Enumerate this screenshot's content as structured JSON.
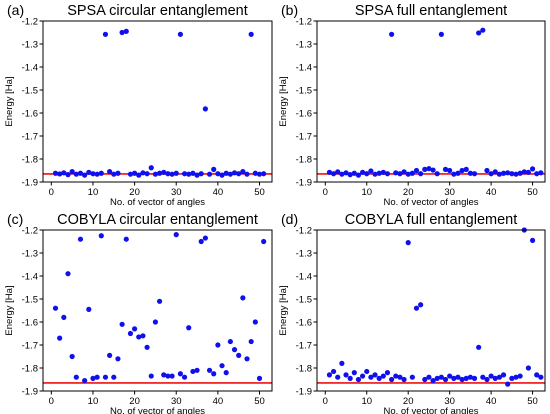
{
  "style": {
    "point_color": "#1010ee",
    "reference_line_color": "#ee1111",
    "axis_color": "#000000"
  },
  "chart_data": [
    {
      "type": "scatter",
      "panel_label": "(a)",
      "title": "SPSA circular entanglement",
      "xlabel": "No. of vector of angles",
      "ylabel": "Energy [Ha]",
      "xlim": [
        -2,
        53
      ],
      "ylim": [
        -1.9,
        -1.2
      ],
      "xticks": [
        0,
        10,
        20,
        30,
        40,
        50
      ],
      "yticks": [
        -1.2,
        -1.3,
        -1.4,
        -1.5,
        -1.6,
        -1.7,
        -1.8,
        -1.9
      ],
      "ytick_labels": [
        "-1.2",
        "-1.3",
        "-1.4",
        "-1.5",
        "-1.6",
        "-1.7",
        "-1.8",
        "-1.9"
      ],
      "reference_line": -1.865,
      "grid": false,
      "x": [
        1,
        2,
        3,
        4,
        5,
        6,
        7,
        8,
        9,
        10,
        11,
        12,
        13,
        14,
        15,
        16,
        17,
        18,
        19,
        20,
        21,
        22,
        23,
        24,
        25,
        26,
        27,
        28,
        29,
        30,
        31,
        32,
        33,
        34,
        35,
        36,
        37,
        38,
        39,
        40,
        41,
        42,
        43,
        44,
        45,
        46,
        47,
        48,
        49,
        50,
        51
      ],
      "y": [
        -1.862,
        -1.865,
        -1.86,
        -1.868,
        -1.855,
        -1.866,
        -1.862,
        -1.87,
        -1.858,
        -1.864,
        -1.866,
        -1.862,
        -1.258,
        -1.855,
        -1.866,
        -1.862,
        -1.25,
        -1.245,
        -1.866,
        -1.862,
        -1.87,
        -1.86,
        -1.864,
        -1.838,
        -1.866,
        -1.862,
        -1.858,
        -1.864,
        -1.866,
        -1.862,
        -1.258,
        -1.864,
        -1.866,
        -1.862,
        -1.87,
        -1.864,
        -1.582,
        -1.866,
        -1.845,
        -1.864,
        -1.87,
        -1.862,
        -1.866,
        -1.86,
        -1.864,
        -1.855,
        -1.866,
        -1.258,
        -1.862,
        -1.866,
        -1.864
      ]
    },
    {
      "type": "scatter",
      "panel_label": "(b)",
      "title": "SPSA full entanglement",
      "xlabel": "No. of vector of angles",
      "ylabel": "Energy [Ha]",
      "xlim": [
        -2,
        53
      ],
      "ylim": [
        -1.9,
        -1.2
      ],
      "xticks": [
        0,
        10,
        20,
        30,
        40,
        50
      ],
      "yticks": [
        -1.2,
        -1.3,
        -1.4,
        -1.5,
        -1.6,
        -1.7,
        -1.8,
        -1.9
      ],
      "ytick_labels": [
        "-1.2",
        "-1.3",
        "-1.4",
        "-1.5",
        "-1.6",
        "-1.7",
        "-1.8",
        "-1.9"
      ],
      "reference_line": -1.865,
      "grid": false,
      "x": [
        1,
        2,
        3,
        4,
        5,
        6,
        7,
        8,
        9,
        10,
        11,
        12,
        13,
        14,
        15,
        16,
        17,
        18,
        19,
        20,
        21,
        22,
        23,
        24,
        25,
        26,
        27,
        28,
        29,
        30,
        31,
        32,
        33,
        34,
        35,
        36,
        37,
        38,
        39,
        40,
        41,
        42,
        43,
        44,
        45,
        46,
        47,
        48,
        49,
        50,
        51,
        52
      ],
      "y": [
        -1.858,
        -1.864,
        -1.856,
        -1.866,
        -1.86,
        -1.868,
        -1.862,
        -1.87,
        -1.858,
        -1.864,
        -1.852,
        -1.866,
        -1.862,
        -1.858,
        -1.864,
        -1.258,
        -1.86,
        -1.864,
        -1.856,
        -1.866,
        -1.862,
        -1.85,
        -1.864,
        -1.845,
        -1.842,
        -1.848,
        -1.864,
        -1.258,
        -1.845,
        -1.85,
        -1.866,
        -1.862,
        -1.85,
        -1.845,
        -1.862,
        -1.864,
        -1.252,
        -1.24,
        -1.85,
        -1.864,
        -1.856,
        -1.866,
        -1.862,
        -1.86,
        -1.864,
        -1.866,
        -1.862,
        -1.856,
        -1.858,
        -1.843,
        -1.864,
        -1.86
      ]
    },
    {
      "type": "scatter",
      "panel_label": "(c)",
      "title": "COBYLA circular entanglement",
      "xlabel": "No. of vector of angles",
      "ylabel": "Energy [Ha]",
      "xlim": [
        -2,
        53
      ],
      "ylim": [
        -1.9,
        -1.2
      ],
      "xticks": [
        0,
        10,
        20,
        30,
        40,
        50
      ],
      "yticks": [
        -1.2,
        -1.3,
        -1.4,
        -1.5,
        -1.6,
        -1.7,
        -1.8,
        -1.9
      ],
      "ytick_labels": [
        "-1.2",
        "-1.3",
        "-1.4",
        "-1.5",
        "-1.6",
        "-1.7",
        "-1.8",
        "-1.9"
      ],
      "reference_line": -1.865,
      "grid": false,
      "x": [
        1,
        2,
        3,
        4,
        5,
        6,
        7,
        8,
        9,
        10,
        11,
        12,
        13,
        14,
        15,
        16,
        17,
        18,
        19,
        20,
        21,
        22,
        23,
        24,
        25,
        26,
        27,
        28,
        29,
        30,
        31,
        32,
        33,
        34,
        35,
        36,
        37,
        38,
        39,
        40,
        41,
        42,
        43,
        44,
        45,
        46,
        47,
        48,
        49,
        50,
        51
      ],
      "y": [
        -1.54,
        -1.67,
        -1.58,
        -1.39,
        -1.75,
        -1.84,
        -1.24,
        -1.855,
        -1.545,
        -1.845,
        -1.84,
        -1.225,
        -1.84,
        -1.745,
        -1.84,
        -1.76,
        -1.61,
        -1.24,
        -1.65,
        -1.63,
        -1.665,
        -1.66,
        -1.71,
        -1.835,
        -1.6,
        -1.51,
        -1.83,
        -1.835,
        -1.835,
        -1.22,
        -1.825,
        -1.84,
        -1.625,
        -1.815,
        -1.81,
        -1.25,
        -1.235,
        -1.81,
        -1.825,
        -1.7,
        -1.79,
        -1.82,
        -1.685,
        -1.72,
        -1.745,
        -1.495,
        -1.76,
        -1.685,
        -1.6,
        -1.845,
        -1.25
      ]
    },
    {
      "type": "scatter",
      "panel_label": "(d)",
      "title": "COBYLA full entanglement",
      "xlabel": "No. of vector of angles",
      "ylabel": "Energy [Ha]",
      "xlim": [
        -2,
        53
      ],
      "ylim": [
        -1.9,
        -1.2
      ],
      "xticks": [
        0,
        10,
        20,
        30,
        40,
        50
      ],
      "yticks": [
        -1.2,
        -1.3,
        -1.4,
        -1.5,
        -1.6,
        -1.7,
        -1.8,
        -1.9
      ],
      "ytick_labels": [
        "-1.2",
        "-1.3",
        "-1.4",
        "-1.5",
        "-1.6",
        "-1.7",
        "-1.8",
        "-1.9"
      ],
      "reference_line": -1.865,
      "grid": false,
      "x": [
        1,
        2,
        3,
        4,
        5,
        6,
        7,
        8,
        9,
        10,
        11,
        12,
        13,
        14,
        15,
        16,
        17,
        18,
        19,
        20,
        21,
        22,
        23,
        24,
        25,
        26,
        27,
        28,
        29,
        30,
        31,
        32,
        33,
        34,
        35,
        36,
        37,
        38,
        39,
        40,
        41,
        42,
        43,
        44,
        45,
        46,
        47,
        48,
        49,
        50,
        51,
        52
      ],
      "y": [
        -1.83,
        -1.815,
        -1.84,
        -1.78,
        -1.83,
        -1.845,
        -1.82,
        -1.85,
        -1.835,
        -1.815,
        -1.84,
        -1.83,
        -1.845,
        -1.835,
        -1.82,
        -1.85,
        -1.835,
        -1.84,
        -1.85,
        -1.255,
        -1.84,
        -1.54,
        -1.525,
        -1.85,
        -1.84,
        -1.855,
        -1.845,
        -1.84,
        -1.85,
        -1.835,
        -1.845,
        -1.84,
        -1.85,
        -1.845,
        -1.84,
        -1.845,
        -1.71,
        -1.84,
        -1.85,
        -1.835,
        -1.845,
        -1.84,
        -1.83,
        -1.87,
        -1.845,
        -1.84,
        -1.835,
        -1.2,
        -1.8,
        -1.245,
        -1.83,
        -1.84
      ]
    }
  ]
}
